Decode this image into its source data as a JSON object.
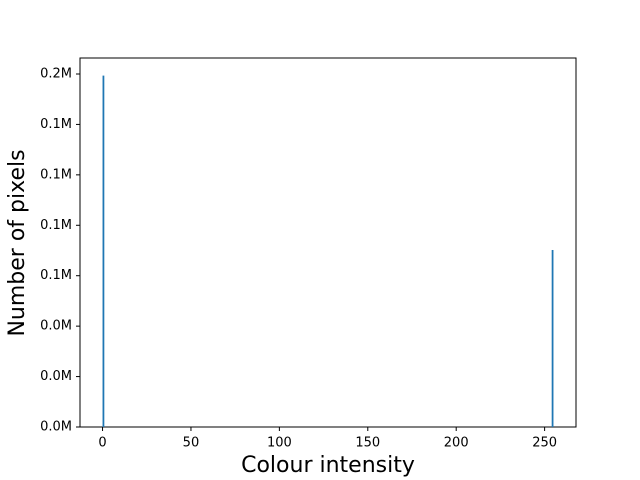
{
  "chart_data": {
    "type": "histogram",
    "xlabel": "Colour intensity",
    "ylabel": "Number of pixels",
    "bins": [
      0,
      1,
      254,
      255
    ],
    "values": [
      174200,
      0,
      87750
    ],
    "color": "#1f77b4",
    "xlim": [
      -12.75,
      267.75
    ],
    "xticks": [
      0,
      50,
      100,
      150,
      200,
      250
    ],
    "ylim": [
      0,
      182930
    ],
    "yticks": [
      {
        "value": 0,
        "label": "0.0M"
      },
      {
        "value": 25000,
        "label": "0.0M"
      },
      {
        "value": 50000,
        "label": "0.0M"
      },
      {
        "value": 75000,
        "label": "0.1M"
      },
      {
        "value": 100000,
        "label": "0.1M"
      },
      {
        "value": 125000,
        "label": "0.1M"
      },
      {
        "value": 150000,
        "label": "0.1M"
      },
      {
        "value": 175000,
        "label": "0.2M"
      }
    ]
  }
}
